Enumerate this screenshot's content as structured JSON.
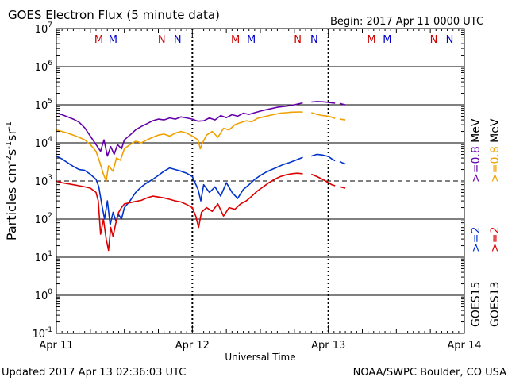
{
  "chart_data": {
    "type": "line",
    "title": "GOES Electron Flux (5 minute data)",
    "begin_label": "Begin: 2017 Apr 11 0000 UTC",
    "xlabel": "Universal Time",
    "ylabel_parts": {
      "base": "Particles cm",
      "exp1": "-2",
      "s": "s",
      "exp2": "-1",
      "sr": "sr",
      "exp3": "-1"
    },
    "x_unit": "hours since 2017 Apr 11 0000 UTC",
    "xlim": [
      0,
      72
    ],
    "x_ticks": [
      {
        "x": 0,
        "label": "Apr 11"
      },
      {
        "x": 24,
        "label": "Apr 12"
      },
      {
        "x": 48,
        "label": "Apr 13"
      },
      {
        "x": 72,
        "label": "Apr 14"
      }
    ],
    "y_scale": "log",
    "ylim_exp": [
      -1,
      7
    ],
    "y_tick_exps": [
      7,
      6,
      5,
      4,
      3,
      2,
      1,
      0,
      -1
    ],
    "y_tick_base": "10",
    "threshold": {
      "value": 1000,
      "style": "dashed"
    },
    "markers": [
      {
        "x": 7.5,
        "label": "M",
        "color": "#cc0000"
      },
      {
        "x": 10.0,
        "label": "M",
        "color": "#0000cc"
      },
      {
        "x": 18.6,
        "label": "N",
        "color": "#cc0000"
      },
      {
        "x": 21.4,
        "label": "N",
        "color": "#0000cc"
      },
      {
        "x": 31.6,
        "label": "M",
        "color": "#cc0000"
      },
      {
        "x": 34.4,
        "label": "M",
        "color": "#0000cc"
      },
      {
        "x": 42.6,
        "label": "N",
        "color": "#cc0000"
      },
      {
        "x": 45.5,
        "label": "N",
        "color": "#0000cc"
      },
      {
        "x": 55.6,
        "label": "M",
        "color": "#cc0000"
      },
      {
        "x": 58.4,
        "label": "M",
        "color": "#0000cc"
      },
      {
        "x": 66.6,
        "label": "N",
        "color": "#cc0000"
      },
      {
        "x": 69.4,
        "label": "N",
        "color": "#0000cc"
      }
    ],
    "day_boundaries": [
      24,
      48
    ],
    "series": [
      {
        "name": ">=0.8 MeV GOES15",
        "color": "#6600aa",
        "points": [
          [
            0,
            60000
          ],
          [
            1,
            55000
          ],
          [
            2,
            48000
          ],
          [
            3,
            42000
          ],
          [
            4,
            35000
          ],
          [
            5,
            25000
          ],
          [
            6,
            15000
          ],
          [
            7,
            9000
          ],
          [
            7.8,
            6000
          ],
          [
            8.4,
            12000
          ],
          [
            9,
            4500
          ],
          [
            9.6,
            8000
          ],
          [
            10.2,
            5000
          ],
          [
            10.8,
            9000
          ],
          [
            11.5,
            7000
          ],
          [
            12,
            12000
          ],
          [
            13,
            16000
          ],
          [
            14,
            22000
          ],
          [
            15,
            27000
          ],
          [
            16,
            32000
          ],
          [
            17,
            38000
          ],
          [
            18,
            42000
          ],
          [
            19,
            40000
          ],
          [
            20,
            45000
          ],
          [
            21,
            42000
          ],
          [
            22,
            48000
          ],
          [
            23,
            45000
          ],
          [
            24,
            42000
          ],
          [
            25,
            37000
          ],
          [
            26,
            38000
          ],
          [
            27,
            45000
          ],
          [
            28,
            40000
          ],
          [
            29,
            52000
          ],
          [
            30,
            46000
          ],
          [
            31,
            55000
          ],
          [
            32,
            50000
          ],
          [
            33,
            60000
          ],
          [
            34,
            56000
          ],
          [
            35,
            62000
          ],
          [
            36,
            68000
          ],
          [
            37,
            74000
          ],
          [
            38,
            80000
          ],
          [
            39,
            86000
          ],
          [
            40,
            90000
          ],
          [
            41,
            94000
          ],
          [
            42,
            100000
          ],
          [
            43,
            108000
          ],
          [
            43.5,
            112000
          ],
          [
            44.5,
            null
          ],
          [
            45,
            118000
          ],
          [
            46,
            122000
          ],
          [
            47,
            120000
          ],
          [
            48,
            116000
          ],
          [
            48.6,
            112000
          ],
          [
            49.2,
            110000
          ],
          [
            49.5,
            null
          ],
          [
            50,
            108000
          ],
          [
            51,
            100000
          ]
        ]
      },
      {
        "name": ">=0.8 MeV GOES13",
        "color": "#f0a000",
        "points": [
          [
            0,
            22000
          ],
          [
            1,
            20000
          ],
          [
            2,
            18000
          ],
          [
            3,
            16000
          ],
          [
            4,
            14000
          ],
          [
            5,
            12000
          ],
          [
            6,
            9000
          ],
          [
            7,
            6000
          ],
          [
            7.7,
            3000
          ],
          [
            8.3,
            1500
          ],
          [
            8.8,
            1000
          ],
          [
            9.2,
            2500
          ],
          [
            10,
            1800
          ],
          [
            10.6,
            4000
          ],
          [
            11.3,
            3500
          ],
          [
            12,
            7000
          ],
          [
            13,
            9000
          ],
          [
            14,
            11000
          ],
          [
            15,
            10000
          ],
          [
            16,
            12000
          ],
          [
            17,
            14000
          ],
          [
            18,
            16000
          ],
          [
            19,
            17000
          ],
          [
            20,
            15000
          ],
          [
            21,
            18000
          ],
          [
            22,
            20000
          ],
          [
            23,
            18000
          ],
          [
            24,
            15000
          ],
          [
            25,
            12000
          ],
          [
            25.4,
            7000
          ],
          [
            25.8,
            10000
          ],
          [
            26.5,
            16000
          ],
          [
            27.5,
            20000
          ],
          [
            28.5,
            14000
          ],
          [
            29.5,
            24000
          ],
          [
            30.5,
            22000
          ],
          [
            31.5,
            30000
          ],
          [
            32.5,
            34000
          ],
          [
            33.5,
            38000
          ],
          [
            34.5,
            36000
          ],
          [
            35.5,
            44000
          ],
          [
            36.5,
            48000
          ],
          [
            37.5,
            52000
          ],
          [
            38.5,
            56000
          ],
          [
            39.5,
            60000
          ],
          [
            40.5,
            62000
          ],
          [
            41.5,
            64000
          ],
          [
            43,
            65000
          ],
          [
            43.5,
            64000
          ],
          [
            44.5,
            null
          ],
          [
            45,
            62000
          ],
          [
            46,
            56000
          ],
          [
            47,
            52000
          ],
          [
            48,
            50000
          ],
          [
            48.6,
            47000
          ],
          [
            49.2,
            44000
          ],
          [
            49.5,
            null
          ],
          [
            50,
            42000
          ],
          [
            51,
            40000
          ]
        ]
      },
      {
        "name": ">=2 MeV GOES15",
        "color": "#0033cc",
        "points": [
          [
            0,
            4500
          ],
          [
            1,
            3800
          ],
          [
            2,
            3000
          ],
          [
            3,
            2400
          ],
          [
            4,
            2000
          ],
          [
            5,
            1900
          ],
          [
            6,
            1500
          ],
          [
            7,
            1100
          ],
          [
            7.5,
            700
          ],
          [
            8,
            250
          ],
          [
            8.5,
            100
          ],
          [
            9,
            300
          ],
          [
            9.5,
            70
          ],
          [
            10,
            150
          ],
          [
            10.5,
            90
          ],
          [
            11,
            130
          ],
          [
            11.5,
            100
          ],
          [
            12,
            200
          ],
          [
            13,
            300
          ],
          [
            14,
            500
          ],
          [
            15,
            700
          ],
          [
            16,
            900
          ],
          [
            17,
            1100
          ],
          [
            18,
            1400
          ],
          [
            19,
            1800
          ],
          [
            20,
            2200
          ],
          [
            21,
            2000
          ],
          [
            22,
            1800
          ],
          [
            23,
            1600
          ],
          [
            24,
            1300
          ],
          [
            25,
            600
          ],
          [
            25.5,
            300
          ],
          [
            26,
            800
          ],
          [
            27,
            500
          ],
          [
            28,
            700
          ],
          [
            29,
            400
          ],
          [
            30,
            900
          ],
          [
            31,
            500
          ],
          [
            32,
            350
          ],
          [
            33,
            600
          ],
          [
            34,
            800
          ],
          [
            35,
            1100
          ],
          [
            36,
            1400
          ],
          [
            37,
            1700
          ],
          [
            38,
            2000
          ],
          [
            39,
            2300
          ],
          [
            40,
            2700
          ],
          [
            41,
            3000
          ],
          [
            42,
            3400
          ],
          [
            43,
            3900
          ],
          [
            43.5,
            4200
          ],
          [
            44.5,
            null
          ],
          [
            45,
            4500
          ],
          [
            46,
            5000
          ],
          [
            47,
            4800
          ],
          [
            48,
            4400
          ],
          [
            48.6,
            3800
          ],
          [
            49.2,
            3400
          ],
          [
            49.5,
            null
          ],
          [
            50,
            3200
          ],
          [
            51,
            2800
          ]
        ]
      },
      {
        "name": ">=2 MeV GOES13",
        "color": "#dd0000",
        "points": [
          [
            0,
            1000
          ],
          [
            1,
            900
          ],
          [
            2,
            850
          ],
          [
            3,
            800
          ],
          [
            4,
            750
          ],
          [
            5,
            700
          ],
          [
            6,
            650
          ],
          [
            7,
            500
          ],
          [
            7.4,
            300
          ],
          [
            7.8,
            40
          ],
          [
            8.3,
            100
          ],
          [
            8.8,
            30
          ],
          [
            9.2,
            15
          ],
          [
            9.6,
            60
          ],
          [
            10,
            35
          ],
          [
            10.5,
            80
          ],
          [
            11,
            150
          ],
          [
            11.5,
            200
          ],
          [
            12,
            250
          ],
          [
            13,
            270
          ],
          [
            14,
            290
          ],
          [
            15,
            310
          ],
          [
            16,
            360
          ],
          [
            17,
            400
          ],
          [
            18,
            380
          ],
          [
            19,
            360
          ],
          [
            20,
            330
          ],
          [
            21,
            300
          ],
          [
            22,
            280
          ],
          [
            23,
            240
          ],
          [
            24,
            200
          ],
          [
            24.6,
            120
          ],
          [
            25.1,
            60
          ],
          [
            25.6,
            150
          ],
          [
            26.5,
            200
          ],
          [
            27.5,
            160
          ],
          [
            28.5,
            250
          ],
          [
            29.5,
            120
          ],
          [
            30.5,
            200
          ],
          [
            31.5,
            180
          ],
          [
            32.5,
            250
          ],
          [
            33.5,
            300
          ],
          [
            34.5,
            400
          ],
          [
            35.5,
            550
          ],
          [
            36.5,
            700
          ],
          [
            37.5,
            900
          ],
          [
            38.5,
            1100
          ],
          [
            39.5,
            1300
          ],
          [
            40.5,
            1450
          ],
          [
            41.5,
            1550
          ],
          [
            42.5,
            1600
          ],
          [
            43.5,
            1550
          ],
          [
            44.5,
            null
          ],
          [
            45,
            1500
          ],
          [
            46,
            1300
          ],
          [
            47,
            1100
          ],
          [
            48,
            900
          ],
          [
            48.6,
            800
          ],
          [
            49.2,
            750
          ],
          [
            49.5,
            null
          ],
          [
            50,
            700
          ],
          [
            51,
            650
          ]
        ]
      }
    ],
    "legend_right": [
      {
        "parts": [
          ">=0.8",
          " MeV"
        ],
        "colors": [
          "#f0a000",
          "#000000"
        ]
      },
      {
        "parts": [
          ">=0.8",
          " MeV"
        ],
        "colors": [
          "#6600aa",
          "#000000"
        ]
      },
      {
        "parts": [
          ">=2"
        ],
        "colors": [
          "#dd0000"
        ]
      },
      {
        "parts": [
          ">=2"
        ],
        "colors": [
          "#0033cc"
        ]
      },
      {
        "parts": [
          "GOES13"
        ],
        "colors": [
          "#000000"
        ]
      },
      {
        "parts": [
          "GOES15"
        ],
        "colors": [
          "#000000"
        ]
      }
    ]
  },
  "footer": {
    "updated": "Updated 2017 Apr 13 02:36:03 UTC",
    "credit": "NOAA/SWPC Boulder, CO USA"
  }
}
